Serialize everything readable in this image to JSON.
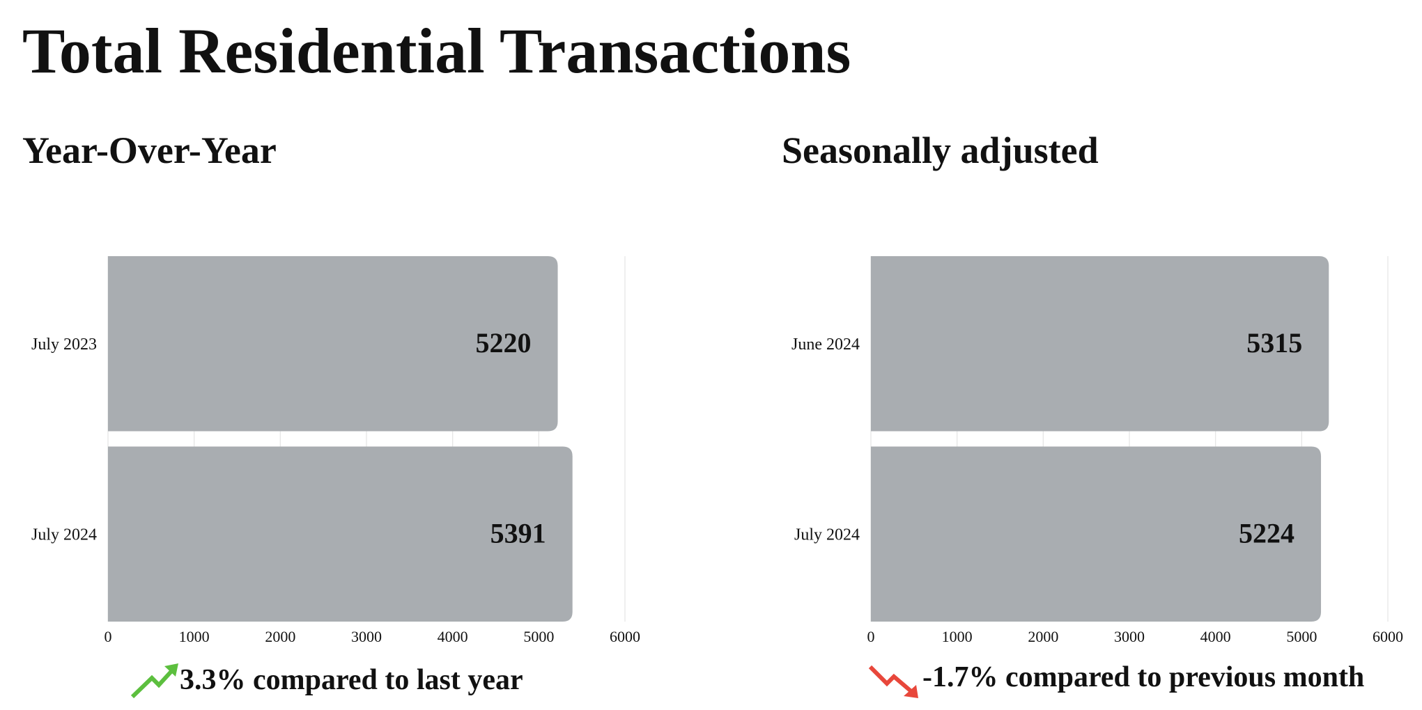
{
  "title": "Total Residential Transactions",
  "chart_data": [
    {
      "type": "hbar",
      "subtitle": "Year-Over-Year",
      "categories": [
        "July 2023",
        "July 2024"
      ],
      "values": [
        5220,
        5391
      ],
      "color": "#a9adb1",
      "xlim": [
        0,
        6000
      ],
      "xticks": [
        0,
        1000,
        2000,
        3000,
        4000,
        5000,
        6000
      ],
      "grid": true,
      "annotation": "3.3% compared to last year"
    },
    {
      "type": "hbar",
      "subtitle": "Seasonally adjusted",
      "categories": [
        "June 2024",
        "July 2024"
      ],
      "values": [
        5315,
        5224
      ],
      "color": "#a9adb1",
      "xlim": [
        0,
        6000
      ],
      "xticks": [
        0,
        1000,
        2000,
        3000,
        4000,
        5000,
        6000
      ],
      "grid": true,
      "annotation": "-1.7% compared to previous month"
    }
  ]
}
